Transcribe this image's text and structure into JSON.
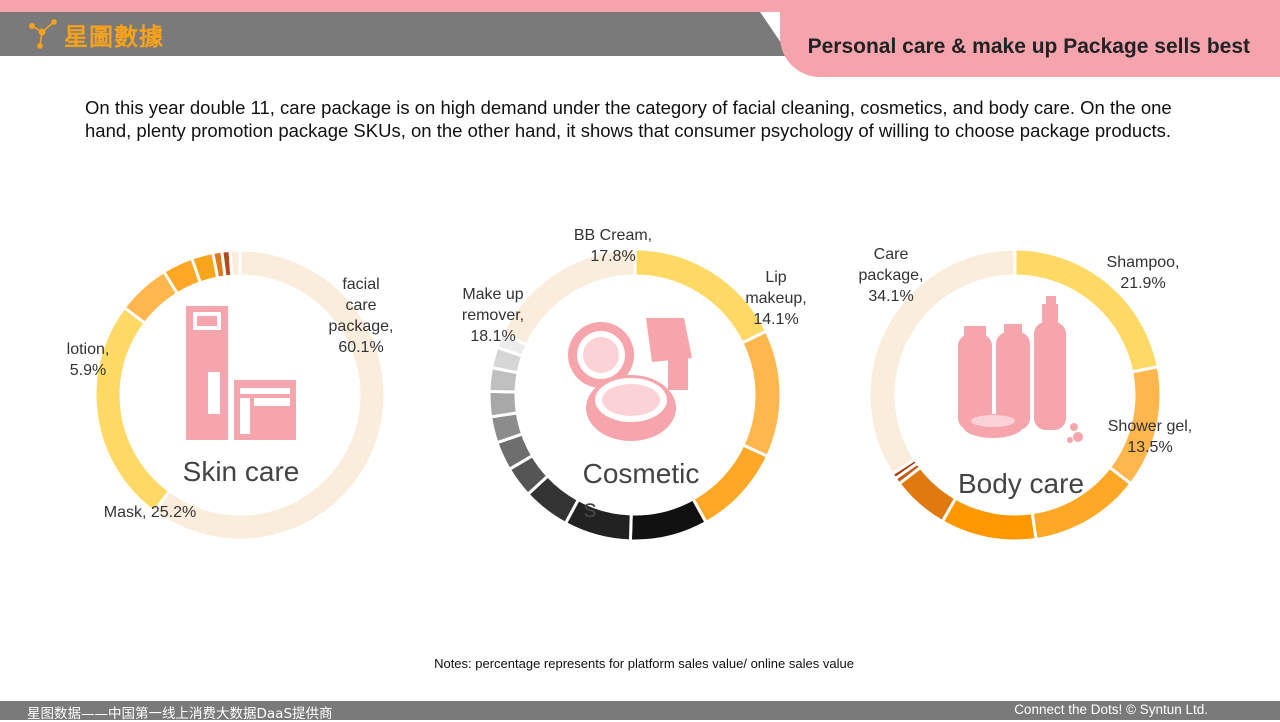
{
  "header": {
    "brand_name": "星圖數據",
    "title": "Personal care & make up Package sells best"
  },
  "intro": "On this year double 11, care package is on high demand under the category of facial cleaning, cosmetics, and body care. On the one hand, plenty promotion package SKUs, on the other hand, it shows that consumer psychology of willing to choose package products.",
  "notes": "Notes: percentage represents for platform sales value/ online sales value",
  "footer": {
    "left": "星图数据——中国第一线上消费大数据DaaS提供商",
    "right": "Connect the Dots! © Syntun Ltd."
  },
  "colors": {
    "accent_pink": "#f5a3ac",
    "bar_gray": "#7a7a7a",
    "brand_orange": "#f7a21a",
    "icon_pink": "#f7a5ad"
  },
  "chart_data": [
    {
      "type": "pie",
      "donut": true,
      "title": "Skin care",
      "icon": "skincare-bottle-icon",
      "slices": [
        {
          "label": "facial care package, 60.1%",
          "value": 60.1,
          "color": "#fbeddc"
        },
        {
          "label": "Mask, 25.2%",
          "value": 25.2,
          "color": "#ffd966"
        },
        {
          "label": "lotion, 5.9%",
          "value": 5.9,
          "color": "#ffb74d"
        },
        {
          "label": "",
          "value": 3.4,
          "color": "#ffa726"
        },
        {
          "label": "",
          "value": 2.4,
          "color": "#f8a51e"
        },
        {
          "label": "",
          "value": 1.0,
          "color": "#e07a1f"
        },
        {
          "label": "",
          "value": 0.9,
          "color": "#b8471d"
        },
        {
          "label": "",
          "value": 1.1,
          "color": "#fbeddc"
        }
      ]
    },
    {
      "type": "pie",
      "donut": true,
      "title": "Cosmetics",
      "icon": "compact-powder-brush-icon",
      "slices": [
        {
          "label": "BB Cream, 17.8%",
          "value": 17.8,
          "color": "#ffd966"
        },
        {
          "label": "Lip makeup, 14.1%",
          "value": 14.1,
          "color": "#ffb74d"
        },
        {
          "label": "",
          "value": 10.0,
          "color": "#ffa726"
        },
        {
          "label": "",
          "value": 8.6,
          "color": "#111111"
        },
        {
          "label": "",
          "value": 7.4,
          "color": "#222222"
        },
        {
          "label": "",
          "value": 5.2,
          "color": "#333333"
        },
        {
          "label": "",
          "value": 3.4,
          "color": "#555555"
        },
        {
          "label": "",
          "value": 3.2,
          "color": "#6e6e6e"
        },
        {
          "label": "",
          "value": 2.9,
          "color": "#8c8c8c"
        },
        {
          "label": "",
          "value": 2.8,
          "color": "#a8a8a8"
        },
        {
          "label": "",
          "value": 2.6,
          "color": "#c0c0c0"
        },
        {
          "label": "",
          "value": 2.3,
          "color": "#d6d6d6"
        },
        {
          "label": "",
          "value": 1.6,
          "color": "#ececec"
        },
        {
          "label": "Make up remover, 18.1%",
          "value": 18.1,
          "color": "#fbeddc"
        }
      ]
    },
    {
      "type": "pie",
      "donut": true,
      "title": "Body care",
      "icon": "bath-products-icon",
      "slices": [
        {
          "label": "Shampoo, 21.9%",
          "value": 21.9,
          "color": "#ffd966"
        },
        {
          "label": "Shower gel, 13.5%",
          "value": 13.5,
          "color": "#ffb74d"
        },
        {
          "label": "",
          "value": 12.3,
          "color": "#ffa726"
        },
        {
          "label": "",
          "value": 10.6,
          "color": "#ff9800"
        },
        {
          "label": "",
          "value": 6.3,
          "color": "#e07a10"
        },
        {
          "label": "",
          "value": 0.7,
          "color": "#c45a14"
        },
        {
          "label": "",
          "value": 0.6,
          "color": "#a63a12"
        },
        {
          "label": "Care package, 34.1%",
          "value": 34.1,
          "color": "#fbeddc"
        }
      ]
    }
  ]
}
